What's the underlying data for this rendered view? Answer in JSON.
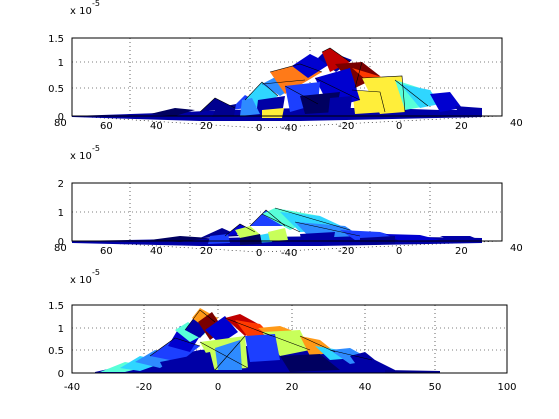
{
  "colors": {
    "background": "#ffffff",
    "palette": [
      "#00008f",
      "#0000d0",
      "#1c3fff",
      "#2e8bff",
      "#2fd6ff",
      "#58ffd9",
      "#c8ff5a",
      "#ffee3a",
      "#ff9a18",
      "#ff3a00",
      "#c00000",
      "#7a0000"
    ]
  },
  "chart_data": [
    {
      "type": "surface",
      "view": "3d",
      "xlim": [
        -80,
        80
      ],
      "ylim": [
        -40,
        40
      ],
      "zlim": [
        0,
        1.5
      ],
      "x_ticks": [
        80,
        60,
        40,
        20,
        0
      ],
      "y_ticks": [
        -40,
        -20,
        0,
        20,
        40
      ],
      "z_ticks": [
        0,
        0.5,
        1,
        1.5
      ],
      "z_ticklabels": [
        "0",
        "0.5",
        "1",
        "1.5"
      ],
      "exponent_base": "x 10",
      "exponent_power": "-5",
      "grid": true,
      "peak_value": 1.25
    },
    {
      "type": "surface",
      "view": "3d",
      "xlim": [
        -80,
        80
      ],
      "ylim": [
        -40,
        40
      ],
      "zlim": [
        0,
        2
      ],
      "x_ticks": [
        80,
        60,
        40,
        20,
        0
      ],
      "y_ticks": [
        -40,
        -20,
        0,
        20,
        40
      ],
      "z_ticks": [
        0,
        1,
        2
      ],
      "z_ticklabels": [
        "0",
        "1",
        "2"
      ],
      "exponent_base": "x 10",
      "exponent_power": "-5",
      "grid": true,
      "peak_value": 1.0
    },
    {
      "type": "surface",
      "view": "side (x-z)",
      "xlim": [
        -40,
        100
      ],
      "zlim": [
        0,
        1.5
      ],
      "x_ticks": [
        -40,
        -20,
        0,
        20,
        40,
        50,
        100
      ],
      "z_ticks": [
        0,
        0.5,
        1,
        1.5
      ],
      "z_ticklabels": [
        "0",
        "0.5",
        "1",
        "1.5"
      ],
      "exponent_base": "x 10",
      "exponent_power": "-5",
      "grid": true,
      "peak_value": 1.4
    }
  ]
}
